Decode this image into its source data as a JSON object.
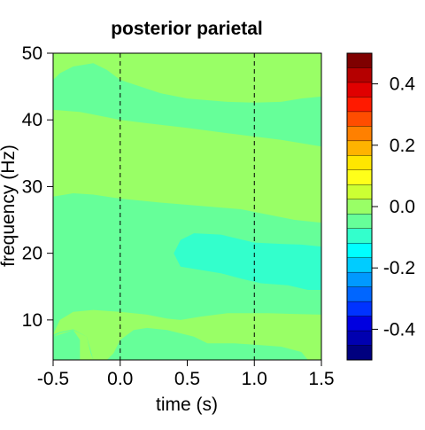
{
  "chart_data": {
    "type": "heatmap",
    "title": "posterior parietal",
    "xlabel": "time (s)",
    "ylabel": "frequency (Hz)",
    "xlim": [
      -0.5,
      1.5
    ],
    "ylim": [
      4,
      50
    ],
    "x_ticks": [
      -0.5,
      0.0,
      0.5,
      1.0,
      1.5
    ],
    "x_tick_labels": [
      "-0.5",
      "0.0",
      "0.5",
      "1.0",
      "1.5"
    ],
    "y_ticks": [
      10,
      20,
      30,
      40,
      50
    ],
    "y_tick_labels": [
      "10",
      "20",
      "30",
      "40",
      "50"
    ],
    "vlines": [
      0.0,
      1.0
    ],
    "colorbar": {
      "range": [
        -0.5,
        0.5
      ],
      "ticks": [
        0.4,
        0.2,
        0.0,
        -0.2,
        -0.4
      ],
      "tick_labels": [
        "0.4",
        "0.2",
        "0.0",
        "-0.2",
        "-0.4"
      ],
      "colors_top_to_bottom": [
        "#7f0000",
        "#b50000",
        "#e00000",
        "#ff1a00",
        "#ff4d00",
        "#ff8000",
        "#ffb300",
        "#ffe600",
        "#ffff1a",
        "#ccff33",
        "#99ff66",
        "#66ff99",
        "#33ffcc",
        "#00ffff",
        "#00ccff",
        "#0099ff",
        "#0066ff",
        "#0033ff",
        "#0000e0",
        "#0000b0",
        "#00007f"
      ]
    },
    "levels": [
      {
        "value": 0.03,
        "color": "#99ff66"
      },
      {
        "value": -0.02,
        "color": "#66ff99"
      },
      {
        "value": -0.07,
        "color": "#33ffcc"
      }
    ],
    "regions": [
      {
        "level": -0.02,
        "polygon": [
          [
            -0.5,
            46
          ],
          [
            -0.45,
            47
          ],
          [
            -0.35,
            48
          ],
          [
            -0.2,
            48.5
          ],
          [
            -0.1,
            47.5
          ],
          [
            0.0,
            46
          ],
          [
            0.3,
            44
          ],
          [
            0.5,
            43.2
          ],
          [
            0.8,
            42.7
          ],
          [
            1.0,
            42.6
          ],
          [
            1.2,
            42.7
          ],
          [
            1.35,
            43.2
          ],
          [
            1.5,
            43.5
          ],
          [
            1.5,
            36
          ],
          [
            1.35,
            36.5
          ],
          [
            1.2,
            37
          ],
          [
            1.0,
            37.5
          ],
          [
            0.8,
            38
          ],
          [
            0.5,
            38.8
          ],
          [
            0.2,
            39.5
          ],
          [
            0.0,
            40
          ],
          [
            -0.3,
            41.2
          ],
          [
            -0.5,
            41.5
          ]
        ]
      },
      {
        "level": -0.02,
        "polygon": [
          [
            -0.5,
            28.5
          ],
          [
            -0.35,
            29
          ],
          [
            -0.2,
            28.8
          ],
          [
            0.0,
            28.2
          ],
          [
            0.3,
            27.6
          ],
          [
            0.6,
            27.1
          ],
          [
            0.9,
            26.6
          ],
          [
            1.1,
            25.8
          ],
          [
            1.3,
            25
          ],
          [
            1.5,
            24.6
          ],
          [
            1.5,
            4
          ],
          [
            -0.2,
            4
          ],
          [
            -0.22,
            5
          ],
          [
            -0.25,
            7.5
          ],
          [
            -0.35,
            8.5
          ],
          [
            -0.45,
            8
          ],
          [
            -0.5,
            7.5
          ]
        ]
      },
      {
        "level": -0.02,
        "polygon": [
          [
            -0.5,
            7.5
          ],
          [
            -0.42,
            8
          ],
          [
            -0.35,
            8.5
          ],
          [
            -0.3,
            7
          ],
          [
            -0.3,
            4
          ],
          [
            -0.5,
            4
          ]
        ]
      },
      {
        "level": 0.03,
        "polygon": [
          [
            -0.5,
            7.8
          ],
          [
            -0.45,
            10
          ],
          [
            -0.35,
            11.2
          ],
          [
            -0.2,
            11.5
          ],
          [
            0.0,
            11.2
          ],
          [
            0.2,
            10.8
          ],
          [
            0.35,
            10.2
          ],
          [
            0.45,
            10
          ],
          [
            0.6,
            10.5
          ],
          [
            0.8,
            11
          ],
          [
            1.1,
            11
          ],
          [
            1.3,
            10.9
          ],
          [
            1.5,
            10.8
          ],
          [
            1.5,
            4
          ],
          [
            1.4,
            4
          ],
          [
            1.35,
            5.2
          ],
          [
            1.2,
            6
          ],
          [
            1.0,
            6.3
          ],
          [
            0.85,
            6.5
          ],
          [
            0.65,
            6.5
          ],
          [
            0.55,
            7.5
          ],
          [
            0.35,
            8.5
          ],
          [
            0.2,
            8.8
          ],
          [
            0.1,
            8.5
          ],
          [
            0.0,
            7
          ],
          [
            -0.05,
            5
          ],
          [
            -0.1,
            4
          ],
          [
            -0.2,
            4
          ],
          [
            -0.22,
            5.5
          ],
          [
            -0.25,
            7.5
          ],
          [
            -0.35,
            8.6
          ],
          [
            -0.45,
            8.2
          ]
        ]
      },
      {
        "level": -0.07,
        "polygon": [
          [
            0.4,
            20
          ],
          [
            0.45,
            22
          ],
          [
            0.55,
            23
          ],
          [
            0.75,
            22.8
          ],
          [
            1.0,
            21.6
          ],
          [
            1.2,
            21.4
          ],
          [
            1.35,
            21.3
          ],
          [
            1.5,
            21
          ],
          [
            1.5,
            14.5
          ],
          [
            1.4,
            14.5
          ],
          [
            1.25,
            15.2
          ],
          [
            1.05,
            15.5
          ],
          [
            0.9,
            16.2
          ],
          [
            0.75,
            17
          ],
          [
            0.6,
            17.5
          ],
          [
            0.45,
            18
          ]
        ]
      }
    ]
  }
}
